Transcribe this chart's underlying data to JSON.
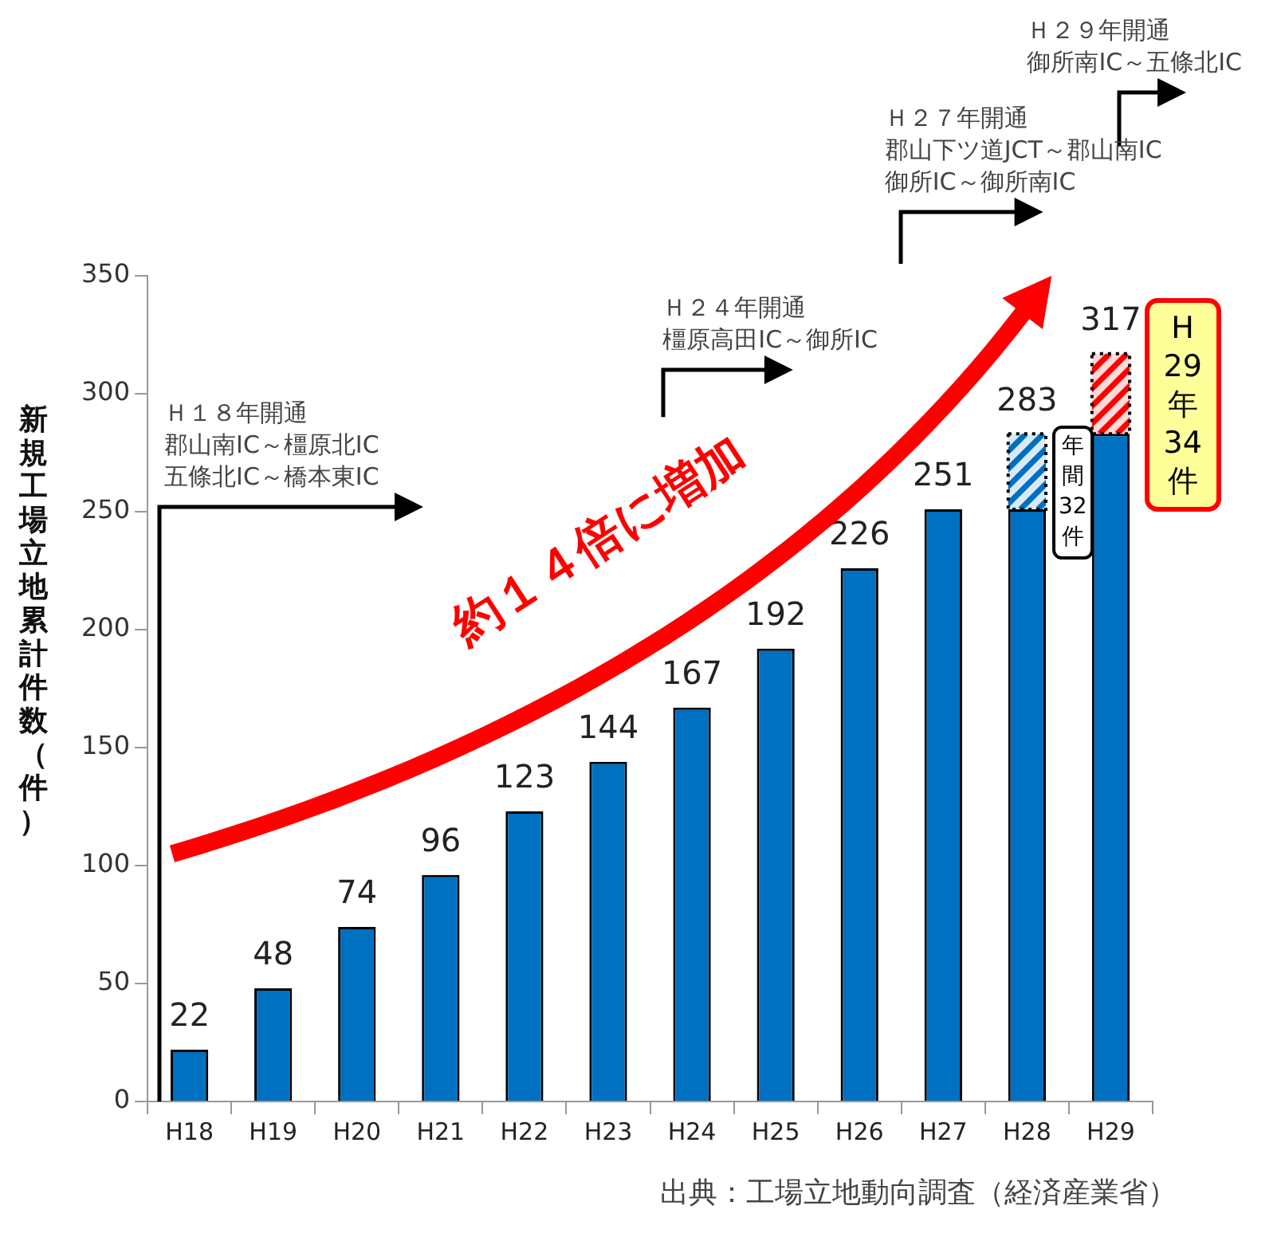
{
  "chart_data": {
    "type": "bar",
    "stacked": true,
    "ylabel": "新規工場立地累計件数（件）",
    "categories": [
      "H18",
      "H19",
      "H20",
      "H21",
      "H22",
      "H23",
      "H24",
      "H25",
      "H26",
      "H27",
      "H28",
      "H29"
    ],
    "series": [
      {
        "color": "#0070c0",
        "values": [
          22,
          48,
          74,
          96,
          123,
          144,
          167,
          192,
          226,
          251,
          251,
          283
        ]
      },
      {
        "colors": [
          null,
          null,
          null,
          null,
          null,
          null,
          null,
          null,
          null,
          null,
          "#0070c0",
          "#ff0000"
        ],
        "values": [
          null,
          null,
          null,
          null,
          null,
          null,
          null,
          null,
          null,
          null,
          32,
          34
        ]
      }
    ],
    "totals": [
      "22",
      "48",
      "74",
      "96",
      "123",
      "144",
      "167",
      "192",
      "226",
      "251",
      "283",
      "317"
    ],
    "ylim": [
      0,
      350
    ],
    "yticks": [
      0,
      50,
      100,
      150,
      200,
      250,
      300,
      350
    ],
    "grid": false,
    "legend": false,
    "annotations": [
      "Ｈ１８年開通",
      "郡山南IC～橿原北IC",
      "五條北IC～橋本東IC",
      "Ｈ２４年開通",
      "橿原高田IC～御所IC",
      "Ｈ２７年開通",
      "郡山下ツ道JCT～郡山南IC",
      "御所IC～御所南IC",
      "Ｈ２９年開通",
      "御所南IC～五條北IC",
      "約１４倍に増加",
      {
        "text": "年間32件",
        "x": "H28",
        "y": 283
      },
      {
        "text": "H29年34件",
        "x": "H29",
        "y": 317
      },
      "出典：工場立地動向調査（経済産業省）"
    ]
  }
}
